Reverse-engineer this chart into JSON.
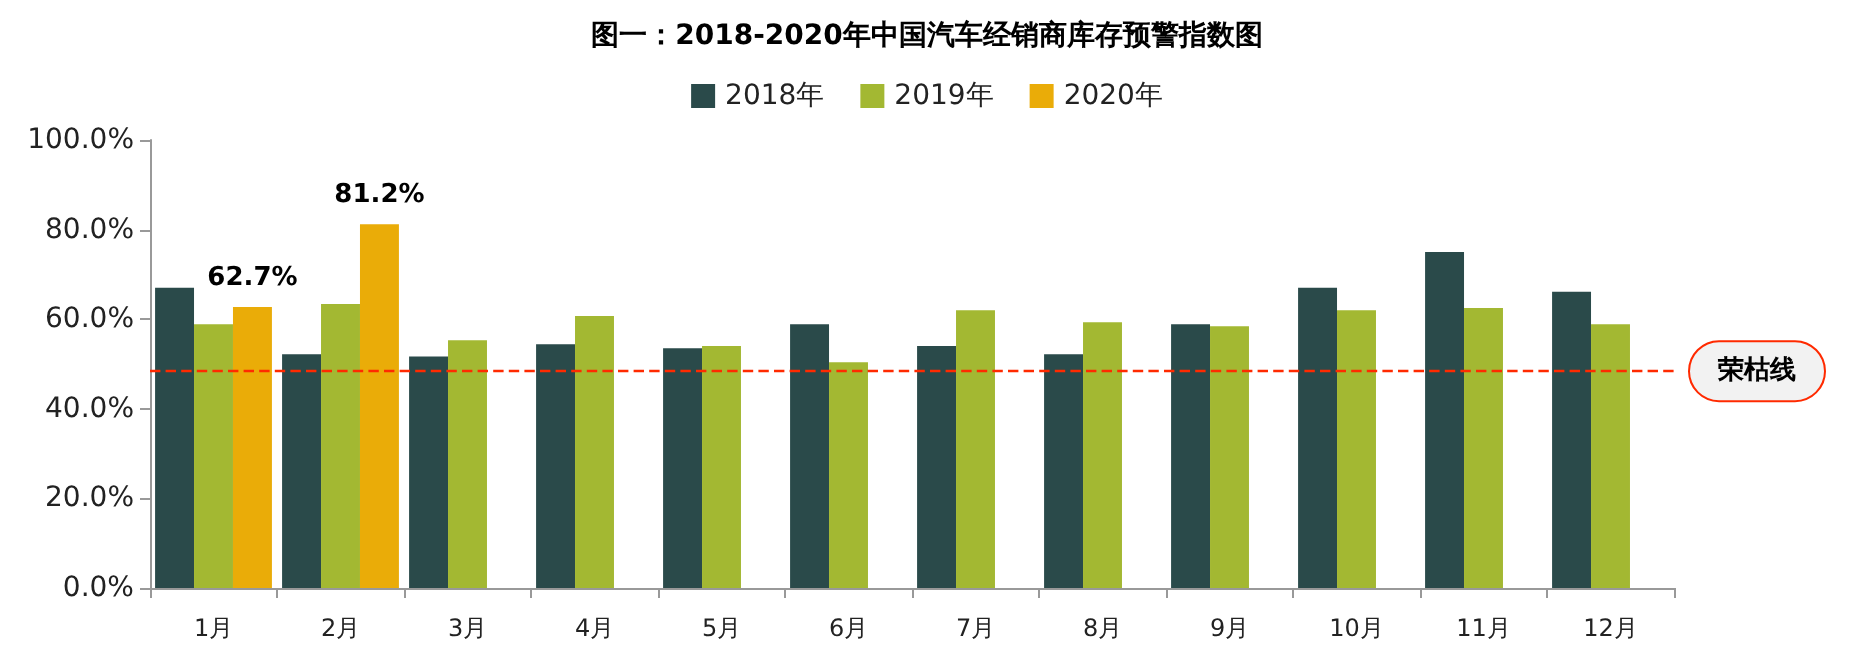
{
  "chart_data": {
    "type": "bar",
    "title": "图一：2018-2020年中国汽车经销商库存预警指数图",
    "categories": [
      "1月",
      "2月",
      "3月",
      "4月",
      "5月",
      "6月",
      "7月",
      "8月",
      "9月",
      "10月",
      "11月",
      "12月"
    ],
    "series": [
      {
        "name": "2018年",
        "color": "#2a4a4a",
        "values": [
          67.0,
          52.2,
          51.7,
          54.4,
          53.5,
          58.9,
          54.0,
          52.2,
          58.9,
          67.0,
          75.0,
          66.1
        ]
      },
      {
        "name": "2019年",
        "color": "#a3b832",
        "values": [
          58.9,
          63.4,
          55.3,
          60.7,
          54.0,
          50.4,
          62.0,
          59.3,
          58.4,
          62.0,
          62.5,
          58.9
        ]
      },
      {
        "name": "2020年",
        "color": "#eaac08",
        "values": [
          62.7,
          81.2,
          null,
          null,
          null,
          null,
          null,
          null,
          null,
          null,
          null,
          null
        ],
        "value_labels": [
          "62.7%",
          "81.2%",
          null,
          null,
          null,
          null,
          null,
          null,
          null,
          null,
          null,
          null
        ]
      }
    ],
    "ylim": [
      0,
      100
    ],
    "yticks": [
      {
        "value": 0,
        "label": "0.0%"
      },
      {
        "value": 20,
        "label": "20.0%"
      },
      {
        "value": 40,
        "label": "40.0%"
      },
      {
        "value": 60,
        "label": "60.0%"
      },
      {
        "value": 80,
        "label": "80.0%"
      },
      {
        "value": 100,
        "label": "100.0%"
      }
    ],
    "ref_lines": [
      {
        "axis": "y",
        "value": 48.4,
        "label": "荣枯线",
        "color": "#ff2a00",
        "line_style": "dashed"
      }
    ],
    "grid": false,
    "legend": "top"
  }
}
